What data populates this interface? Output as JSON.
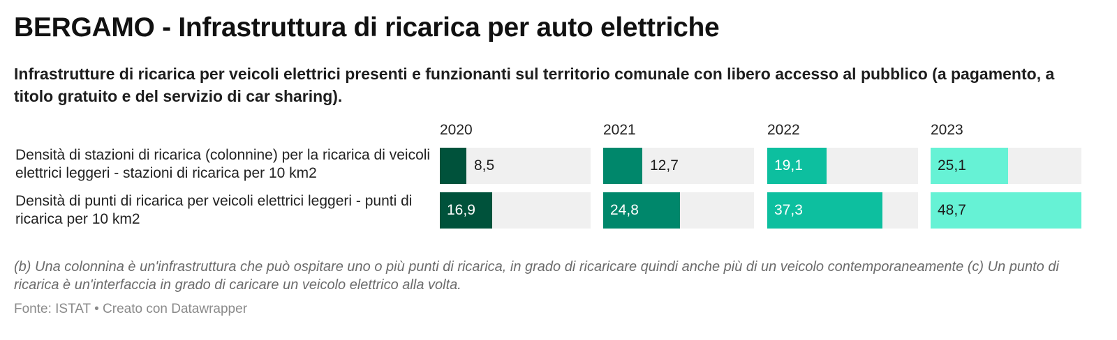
{
  "title": "BERGAMO - Infrastruttura di ricarica per auto elettriche",
  "subtitle": "Infrastrutture di ricarica per veicoli elettrici presenti e funzionanti sul territorio comunale con libero accesso al pubblico (a pagamento, a titolo gratuito e del servizio di car sharing).",
  "notes": "(b) Una colonnina è un'infrastruttura che può ospitare uno o più punti di ricarica, in grado di ricaricare quindi anche più di un veicolo contemporaneamente (c) Un punto di ricarica è un'interfaccia in grado di caricare un veicolo elettrico alla volta.",
  "source_line": "Fonte: ISTAT • Creato con Datawrapper",
  "chart_data": {
    "type": "bar",
    "columns": [
      "2020",
      "2021",
      "2022",
      "2023"
    ],
    "column_colors": [
      "#00523b",
      "#00876b",
      "#0dbf9f",
      "#66f2d5"
    ],
    "column_text_colors": [
      "#ffffff",
      "#ffffff",
      "#ffffff",
      "#1d1d1d"
    ],
    "track_color": "#f0f0f0",
    "max": 48.7,
    "rows": [
      {
        "label": "Densità di stazioni di ricarica (colonnine) per la ricarica di veicoli elettrici leggeri - stazioni di ricarica per 10 km2",
        "values": [
          8.5,
          12.7,
          19.1,
          25.1
        ],
        "labels": [
          "8,5",
          "12,7",
          "19,1",
          "25,1"
        ]
      },
      {
        "label": "Densità di punti di ricarica per veicoli elettrici leggeri - punti di ricarica per 10 km2",
        "values": [
          16.9,
          24.8,
          37.3,
          48.7
        ],
        "labels": [
          "16,9",
          "24,8",
          "37,3",
          "48,7"
        ]
      }
    ]
  }
}
